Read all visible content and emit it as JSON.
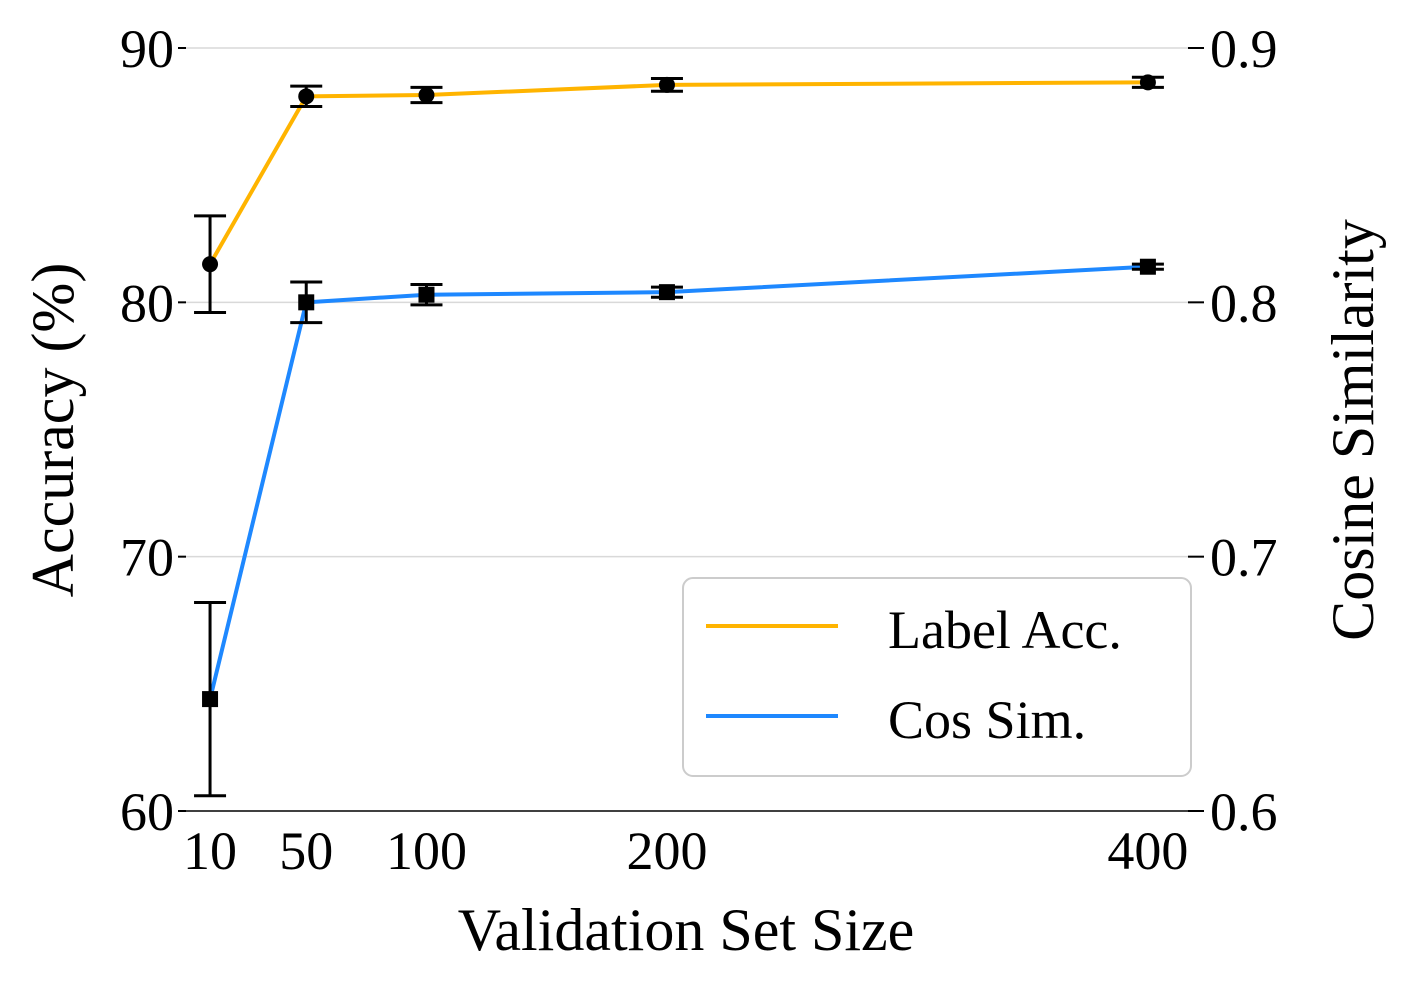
{
  "chart_data": {
    "type": "line",
    "xlabel": "Validation Set Size",
    "ylabel_left": "Accuracy (%)",
    "ylabel_right": "Cosine Similarity",
    "x": [
      10,
      50,
      100,
      200,
      400
    ],
    "x_tick_labels": [
      "10",
      "50",
      "100",
      "200",
      "400"
    ],
    "xlim": [
      0,
      420
    ],
    "ylim_left": [
      60,
      90
    ],
    "ylim_right": [
      0.6,
      0.9
    ],
    "left_ticks": [
      60,
      70,
      80,
      90
    ],
    "left_tick_labels": [
      "60",
      "70",
      "80",
      "90"
    ],
    "right_ticks": [
      0.6,
      0.7,
      0.8,
      0.9
    ],
    "right_tick_labels": [
      "0.6",
      "0.7",
      "0.8",
      "0.9"
    ],
    "grid": true,
    "legend_position": "lower-right",
    "series": [
      {
        "name": "Label Acc.",
        "axis": "left",
        "color": "#FFB400",
        "marker": "circle",
        "values": [
          81.5,
          88.1,
          88.15,
          88.55,
          88.65
        ],
        "errors": [
          1.9,
          0.4,
          0.3,
          0.25,
          0.2
        ]
      },
      {
        "name": "Cos Sim.",
        "axis": "right",
        "color": "#1E88FF",
        "marker": "square",
        "values": [
          0.644,
          0.8,
          0.803,
          0.804,
          0.814
        ],
        "errors": [
          0.038,
          0.008,
          0.004,
          0.002,
          0.001
        ]
      }
    ]
  }
}
